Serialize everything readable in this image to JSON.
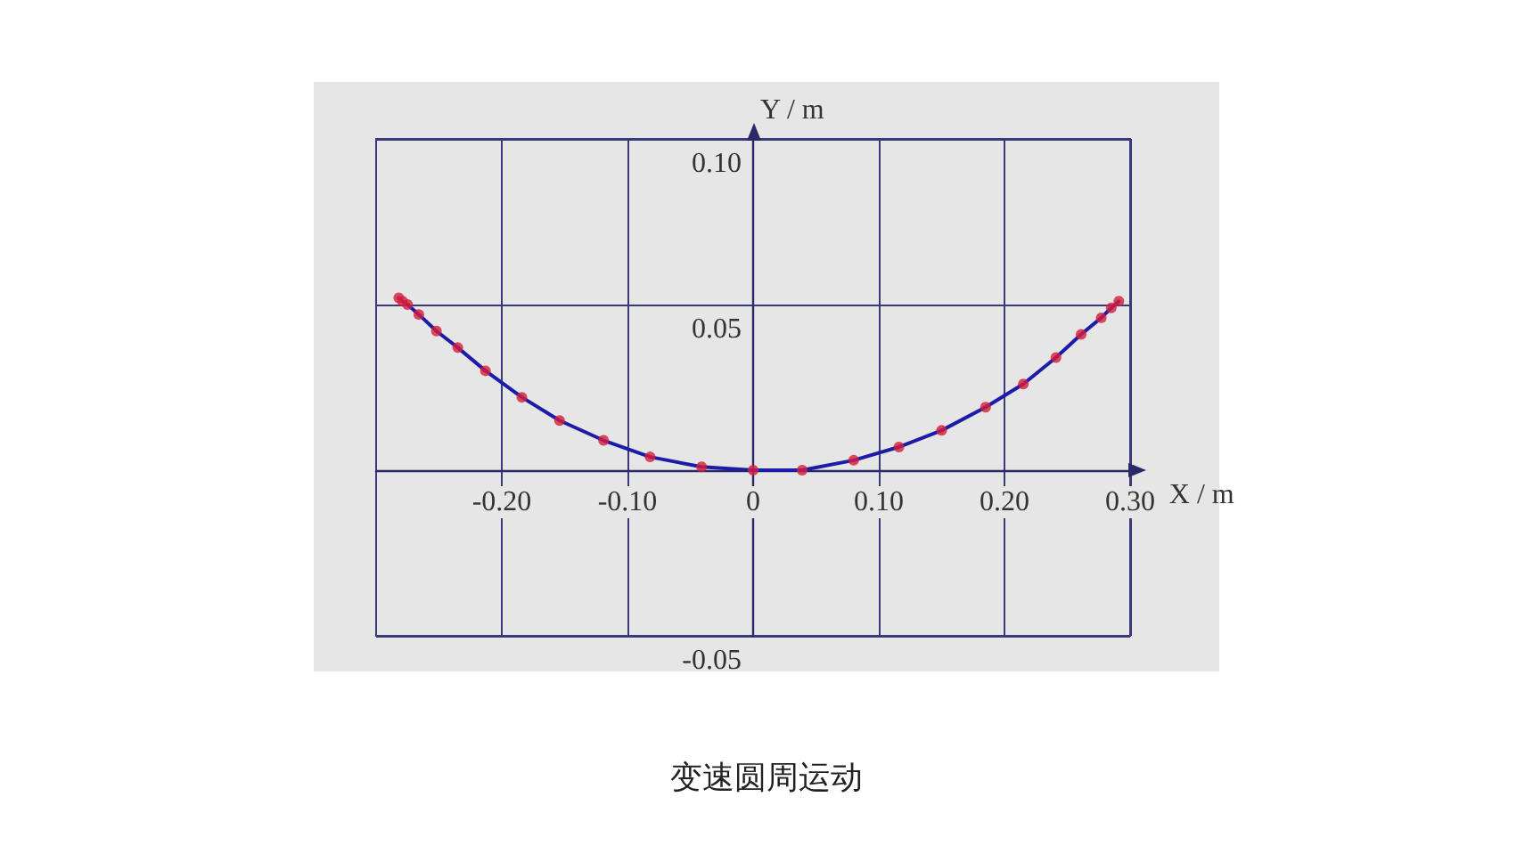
{
  "chart_data": {
    "type": "line",
    "xlabel": "X / m",
    "ylabel": "Y / m",
    "annotations": [
      "变速圆周运动"
    ],
    "xlim": [
      -0.3,
      0.3
    ],
    "ylim": [
      -0.05,
      0.1
    ],
    "xticks": [
      {
        "value": -0.2,
        "label": "-0.20"
      },
      {
        "value": -0.1,
        "label": "-0.10"
      },
      0,
      {
        "value": 0.1,
        "label": "0.10"
      },
      {
        "value": 0.2,
        "label": "0.20"
      },
      {
        "value": 0.3,
        "label": "0.30"
      }
    ],
    "yticks": [
      {
        "value": -0.05,
        "label": "-0.05"
      },
      {
        "value": 0,
        "label": null
      },
      {
        "value": 0.05,
        "label": "0.05"
      },
      {
        "value": 0.1,
        "label": "0.10"
      }
    ],
    "grid": true,
    "line_style": "solid",
    "series": [
      {
        "marker": "none",
        "color": "#1c1ca8",
        "x": [
          -0.282,
          -0.279,
          -0.275,
          -0.266,
          -0.252,
          -0.235,
          -0.213,
          -0.184,
          -0.154,
          -0.119,
          -0.082,
          -0.041,
          0,
          0.039,
          0.08,
          0.116,
          0.15,
          0.185,
          0.215,
          0.241,
          0.261,
          0.277,
          0.285,
          0.291
        ],
        "values": [
          0.052,
          0.051,
          0.05,
          0.047,
          0.042,
          0.037,
          0.03,
          0.022,
          0.015,
          0.009,
          0.004,
          0.001,
          0,
          0,
          0.003,
          0.007,
          0.012,
          0.019,
          0.026,
          0.034,
          0.041,
          0.046,
          0.049,
          0.051
        ]
      },
      {
        "type": "scatter",
        "marker": "circle",
        "color": "#d41e3c",
        "x": [
          -0.282,
          -0.279,
          -0.275,
          -0.266,
          -0.252,
          -0.235,
          -0.213,
          -0.184,
          -0.154,
          -0.119,
          -0.082,
          -0.041,
          0,
          0.039,
          0.08,
          0.116,
          0.15,
          0.185,
          0.215,
          0.241,
          0.261,
          0.277,
          0.285,
          0.291
        ],
        "values": [
          0.052,
          0.051,
          0.05,
          0.047,
          0.042,
          0.037,
          0.03,
          0.022,
          0.015,
          0.009,
          0.004,
          0.001,
          0,
          0,
          0.003,
          0.007,
          0.012,
          0.019,
          0.026,
          0.034,
          0.041,
          0.046,
          0.049,
          0.051
        ]
      }
    ]
  }
}
